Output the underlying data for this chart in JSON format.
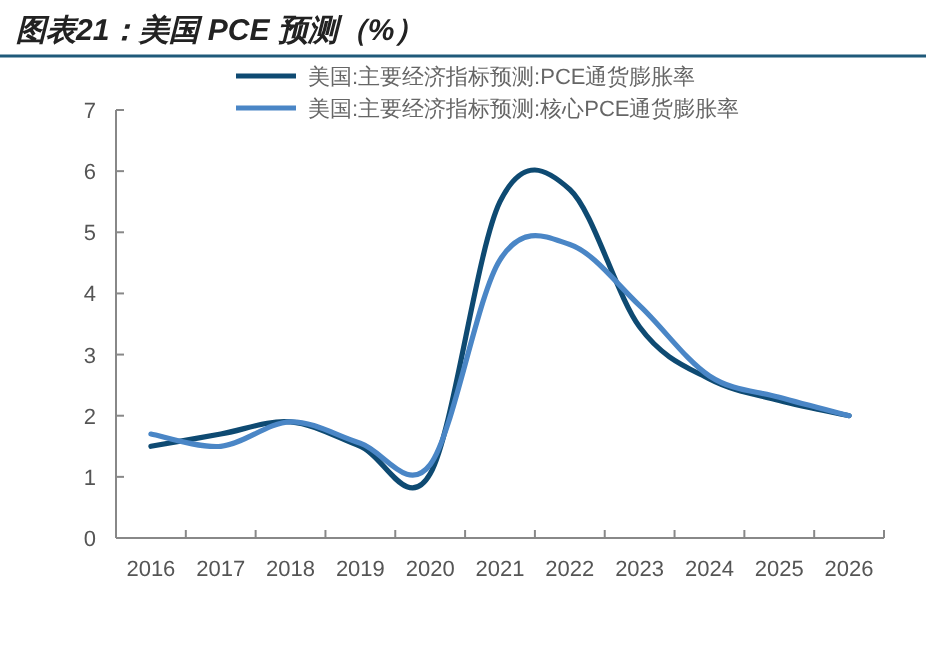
{
  "chart_data": {
    "type": "line",
    "title": "图表21：美国 PCE 预测（%）",
    "categories": [
      "2016",
      "2017",
      "2018",
      "2019",
      "2020",
      "2021",
      "2022",
      "2023",
      "2024",
      "2025",
      "2026"
    ],
    "series": [
      {
        "name": "美国:主要经济指标预测:PCE通货膨胀率",
        "color": "#0e4a72",
        "values": [
          1.5,
          1.7,
          1.9,
          1.5,
          1.05,
          5.5,
          5.7,
          3.45,
          2.6,
          2.25,
          2.0
        ]
      },
      {
        "name": "美国:主要经济指标预测:核心PCE通货膨胀率",
        "color": "#4a86c6",
        "values": [
          1.7,
          1.5,
          1.9,
          1.55,
          1.2,
          4.55,
          4.8,
          3.8,
          2.65,
          2.3,
          2.0
        ]
      }
    ],
    "ylim": [
      0,
      7
    ],
    "yticks": [
      0,
      1,
      2,
      3,
      4,
      5,
      6,
      7
    ],
    "grid": false,
    "legend": "top",
    "marker": "none",
    "line_style": "solid"
  }
}
